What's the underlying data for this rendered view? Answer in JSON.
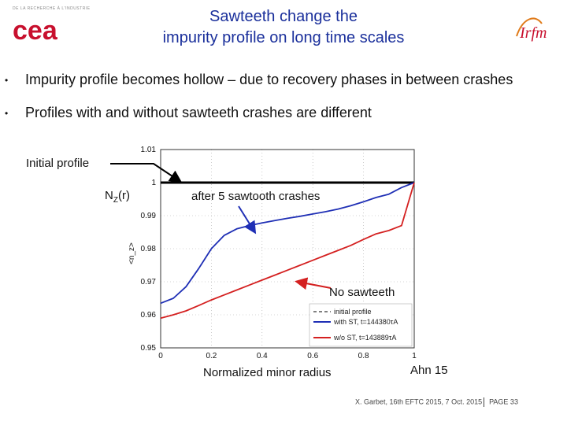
{
  "header": {
    "title_line1": "Sawteeth change the",
    "title_line2": "impurity profile on long time scales",
    "logo_left_text": "cea",
    "logo_left_tagline": "DE LA RECHERCHE À L'INDUSTRIE",
    "logo_right_text": "Irfm"
  },
  "bullets": [
    {
      "marker": "•",
      "text": "Impurity profile becomes hollow – due to recovery phases in between crashes"
    },
    {
      "marker": "•",
      "text": "Profiles with and without sawteeth crashes are different"
    }
  ],
  "annotations": {
    "initial_profile": "Initial profile",
    "nz_prefix": "N",
    "nz_sub": "Z",
    "nz_suffix": "(r)",
    "after_crashes": "after 5 sawtooth crashes",
    "no_sawteeth": "No sawteeth",
    "x_axis_title": "Normalized minor radius",
    "source": "Ahn 15"
  },
  "footer": {
    "citation": "X. Garbet, 16th EFTC 2015, 7 Oct. 2015",
    "page": "PAGE 33"
  },
  "colors": {
    "title": "#1a2f9b",
    "initial": "#000000",
    "with_st": "#1f2fb5",
    "without_st": "#d42020",
    "arrow_red": "#d42020"
  },
  "chart_data": {
    "type": "line",
    "title": "",
    "xlabel": "",
    "ylabel": "<n_z>",
    "xlim": [
      0,
      1
    ],
    "ylim": [
      0.95,
      1.01
    ],
    "x_ticks": [
      "0",
      "0.2",
      "0.4",
      "0.6",
      "0.8",
      "1"
    ],
    "y_ticks": [
      "1.01",
      "1",
      "0.99",
      "0.98",
      "0.97",
      "0.96",
      "0.95"
    ],
    "grid": true,
    "legend_position": "bottom-right",
    "series": [
      {
        "name": "initial profile",
        "style": "dashed-legend",
        "x": [
          0,
          1
        ],
        "y": [
          1.0,
          1.0
        ]
      },
      {
        "name": "with ST, t=144380τA",
        "x": [
          0,
          0.05,
          0.1,
          0.15,
          0.2,
          0.25,
          0.3,
          0.35,
          0.4,
          0.45,
          0.5,
          0.55,
          0.6,
          0.65,
          0.7,
          0.75,
          0.8,
          0.85,
          0.9,
          0.95,
          1.0
        ],
        "y": [
          0.9635,
          0.965,
          0.9685,
          0.974,
          0.98,
          0.984,
          0.986,
          0.987,
          0.9878,
          0.9885,
          0.9892,
          0.9898,
          0.9905,
          0.9912,
          0.992,
          0.993,
          0.9942,
          0.9955,
          0.9965,
          0.9985,
          1.0
        ]
      },
      {
        "name": "w/o ST, t=143889τA",
        "x": [
          0,
          0.05,
          0.1,
          0.15,
          0.2,
          0.25,
          0.3,
          0.35,
          0.4,
          0.45,
          0.5,
          0.55,
          0.6,
          0.65,
          0.7,
          0.75,
          0.8,
          0.85,
          0.9,
          0.95,
          1.0
        ],
        "y": [
          0.959,
          0.96,
          0.9612,
          0.9628,
          0.9645,
          0.966,
          0.9675,
          0.969,
          0.9705,
          0.972,
          0.9735,
          0.975,
          0.9765,
          0.978,
          0.9795,
          0.981,
          0.9828,
          0.9845,
          0.9855,
          0.987,
          1.0
        ]
      }
    ],
    "legend_entries": [
      "initial profile",
      "with ST, t=144380τA",
      "w/o ST, t=143889τA"
    ]
  }
}
